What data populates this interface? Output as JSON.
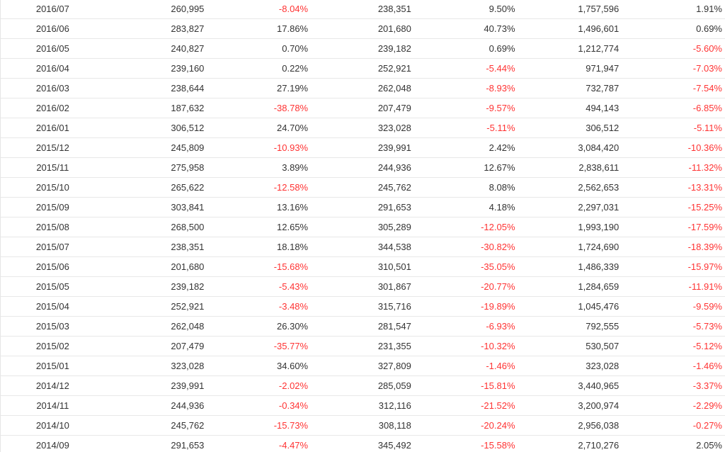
{
  "colors": {
    "negative": "#ff3333",
    "text": "#333333",
    "row_border": "#e8e8e8"
  },
  "rows": [
    [
      "2016/07",
      "260,995",
      "-8.04%",
      "238,351",
      "9.50%",
      "1,757,596",
      "1.91%"
    ],
    [
      "2016/06",
      "283,827",
      "17.86%",
      "201,680",
      "40.73%",
      "1,496,601",
      "0.69%"
    ],
    [
      "2016/05",
      "240,827",
      "0.70%",
      "239,182",
      "0.69%",
      "1,212,774",
      "-5.60%"
    ],
    [
      "2016/04",
      "239,160",
      "0.22%",
      "252,921",
      "-5.44%",
      "971,947",
      "-7.03%"
    ],
    [
      "2016/03",
      "238,644",
      "27.19%",
      "262,048",
      "-8.93%",
      "732,787",
      "-7.54%"
    ],
    [
      "2016/02",
      "187,632",
      "-38.78%",
      "207,479",
      "-9.57%",
      "494,143",
      "-6.85%"
    ],
    [
      "2016/01",
      "306,512",
      "24.70%",
      "323,028",
      "-5.11%",
      "306,512",
      "-5.11%"
    ],
    [
      "2015/12",
      "245,809",
      "-10.93%",
      "239,991",
      "2.42%",
      "3,084,420",
      "-10.36%"
    ],
    [
      "2015/11",
      "275,958",
      "3.89%",
      "244,936",
      "12.67%",
      "2,838,611",
      "-11.32%"
    ],
    [
      "2015/10",
      "265,622",
      "-12.58%",
      "245,762",
      "8.08%",
      "2,562,653",
      "-13.31%"
    ],
    [
      "2015/09",
      "303,841",
      "13.16%",
      "291,653",
      "4.18%",
      "2,297,031",
      "-15.25%"
    ],
    [
      "2015/08",
      "268,500",
      "12.65%",
      "305,289",
      "-12.05%",
      "1,993,190",
      "-17.59%"
    ],
    [
      "2015/07",
      "238,351",
      "18.18%",
      "344,538",
      "-30.82%",
      "1,724,690",
      "-18.39%"
    ],
    [
      "2015/06",
      "201,680",
      "-15.68%",
      "310,501",
      "-35.05%",
      "1,486,339",
      "-15.97%"
    ],
    [
      "2015/05",
      "239,182",
      "-5.43%",
      "301,867",
      "-20.77%",
      "1,284,659",
      "-11.91%"
    ],
    [
      "2015/04",
      "252,921",
      "-3.48%",
      "315,716",
      "-19.89%",
      "1,045,476",
      "-9.59%"
    ],
    [
      "2015/03",
      "262,048",
      "26.30%",
      "281,547",
      "-6.93%",
      "792,555",
      "-5.73%"
    ],
    [
      "2015/02",
      "207,479",
      "-35.77%",
      "231,355",
      "-10.32%",
      "530,507",
      "-5.12%"
    ],
    [
      "2015/01",
      "323,028",
      "34.60%",
      "327,809",
      "-1.46%",
      "323,028",
      "-1.46%"
    ],
    [
      "2014/12",
      "239,991",
      "-2.02%",
      "285,059",
      "-15.81%",
      "3,440,965",
      "-3.37%"
    ],
    [
      "2014/11",
      "244,936",
      "-0.34%",
      "312,116",
      "-21.52%",
      "3,200,974",
      "-2.29%"
    ],
    [
      "2014/10",
      "245,762",
      "-15.73%",
      "308,118",
      "-20.24%",
      "2,956,038",
      "-0.27%"
    ],
    [
      "2014/09",
      "291,653",
      "-4.47%",
      "345,492",
      "-15.58%",
      "2,710,276",
      "2.05%"
    ]
  ]
}
